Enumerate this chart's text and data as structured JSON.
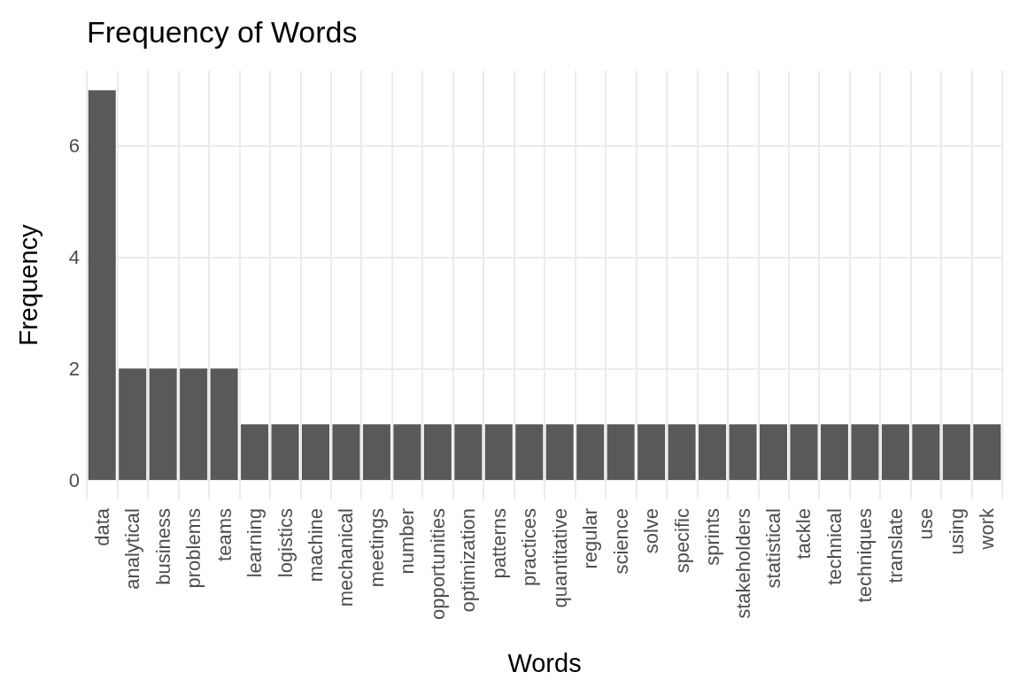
{
  "chart_data": {
    "type": "bar",
    "title": "Frequency of Words",
    "xlabel": "Words",
    "ylabel": "Frequency",
    "categories": [
      "data",
      "analytical",
      "business",
      "problems",
      "teams",
      "learning",
      "logistics",
      "machine",
      "mechanical",
      "meetings",
      "number",
      "opportunities",
      "optimization",
      "patterns",
      "practices",
      "quantitative",
      "regular",
      "science",
      "solve",
      "specific",
      "sprints",
      "stakeholders",
      "statistical",
      "tackle",
      "technical",
      "techniques",
      "translate",
      "use",
      "using",
      "work"
    ],
    "values": [
      7,
      2,
      2,
      2,
      2,
      1,
      1,
      1,
      1,
      1,
      1,
      1,
      1,
      1,
      1,
      1,
      1,
      1,
      1,
      1,
      1,
      1,
      1,
      1,
      1,
      1,
      1,
      1,
      1,
      1
    ],
    "color": "#595959",
    "ylim": [
      -0.35,
      7.35
    ],
    "yticks": [
      0,
      2,
      4,
      6
    ],
    "grid": true
  }
}
